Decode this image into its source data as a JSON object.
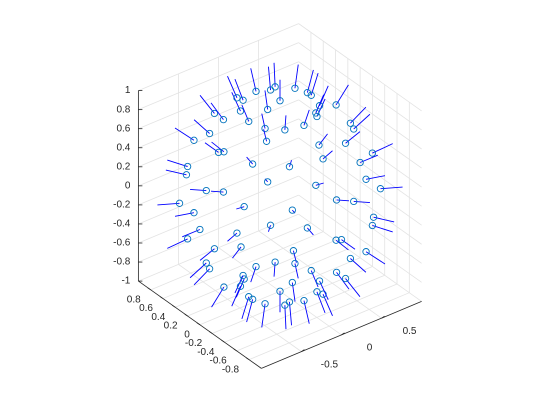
{
  "chart_data": {
    "type": "quiver3",
    "x": [
      0.39,
      0.34,
      0.2,
      0,
      -0.2,
      -0.34,
      -0.39,
      -0.34,
      -0.2,
      0,
      0.2,
      0.34,
      0.7,
      0.61,
      0.35,
      0,
      -0.35,
      -0.61,
      -0.7,
      -0.61,
      -0.35,
      0,
      0.35,
      0.61,
      0.92,
      0.8,
      0.46,
      0,
      -0.46,
      -0.8,
      -0.92,
      -0.8,
      -0.46,
      0,
      0.46,
      0.8,
      1,
      0.87,
      0.5,
      0,
      -0.5,
      -0.87,
      -1,
      -0.87,
      -0.5,
      0,
      0.5,
      0.87,
      0.92,
      0.8,
      0.46,
      0,
      -0.46,
      -0.8,
      -0.92,
      -0.8,
      -0.46,
      0,
      0.46,
      0.8,
      0.7,
      0.61,
      0.35,
      0,
      -0.35,
      -0.61,
      -0.7,
      -0.61,
      -0.35,
      0,
      0.35,
      0.61,
      0.39,
      0.34,
      0.2,
      0,
      -0.2,
      -0.34,
      -0.39,
      -0.34,
      -0.2,
      0,
      0.2,
      0.34,
      0,
      0
    ],
    "y": [
      0,
      0.2,
      0.34,
      0.39,
      0.34,
      0.2,
      0,
      -0.2,
      -0.34,
      -0.39,
      -0.34,
      -0.2,
      0,
      0.35,
      0.61,
      0.7,
      0.61,
      0.35,
      0,
      -0.35,
      -0.61,
      -0.7,
      -0.61,
      -0.35,
      0,
      0.46,
      0.8,
      0.92,
      0.8,
      0.46,
      0,
      -0.46,
      -0.8,
      -0.92,
      -0.8,
      -0.46,
      0,
      0.5,
      0.87,
      1,
      0.87,
      0.5,
      0,
      -0.5,
      -0.87,
      -1,
      -0.87,
      -0.5,
      0,
      0.46,
      0.8,
      0.92,
      0.8,
      0.46,
      0,
      -0.46,
      -0.8,
      -0.92,
      -0.8,
      -0.46,
      0,
      0.35,
      0.61,
      0.7,
      0.61,
      0.35,
      0,
      -0.35,
      -0.61,
      -0.7,
      -0.61,
      -0.35,
      0,
      0.2,
      0.34,
      0.39,
      0.34,
      0.2,
      0,
      -0.2,
      -0.34,
      -0.39,
      -0.34,
      -0.2,
      0,
      0
    ],
    "z": [
      0.92,
      0.92,
      0.92,
      0.92,
      0.92,
      0.92,
      0.92,
      0.92,
      0.92,
      0.92,
      0.92,
      0.92,
      0.71,
      0.71,
      0.71,
      0.71,
      0.71,
      0.71,
      0.71,
      0.71,
      0.71,
      0.71,
      0.71,
      0.71,
      0.38,
      0.38,
      0.38,
      0.38,
      0.38,
      0.38,
      0.38,
      0.38,
      0.38,
      0.38,
      0.38,
      0.38,
      0,
      0,
      0,
      0,
      0,
      0,
      0,
      0,
      0,
      0,
      0,
      0,
      -0.38,
      -0.38,
      -0.38,
      -0.38,
      -0.38,
      -0.38,
      -0.38,
      -0.38,
      -0.38,
      -0.38,
      -0.38,
      -0.38,
      -0.71,
      -0.71,
      -0.71,
      -0.71,
      -0.71,
      -0.71,
      -0.71,
      -0.71,
      -0.71,
      -0.71,
      -0.71,
      -0.71,
      -0.92,
      -0.92,
      -0.92,
      -0.92,
      -0.92,
      -0.92,
      -0.92,
      -0.92,
      -0.92,
      -0.92,
      -0.92,
      -0.92,
      1,
      -1
    ],
    "marker_color": "#0072bd",
    "arrow_color": "#0000ff",
    "xlim": [
      -1,
      1
    ],
    "ylim": [
      -1,
      1
    ],
    "zlim": [
      -1,
      1
    ],
    "xticks": [
      -0.5,
      0,
      0.5
    ],
    "yticks": [
      -0.8,
      -0.6,
      -0.4,
      -0.2,
      0,
      0.2,
      0.4,
      0.6,
      0.8
    ],
    "zticks": [
      -1,
      -0.8,
      -0.6,
      -0.4,
      -0.2,
      0,
      0.2,
      0.4,
      0.6,
      0.8,
      1
    ],
    "grid": true
  }
}
